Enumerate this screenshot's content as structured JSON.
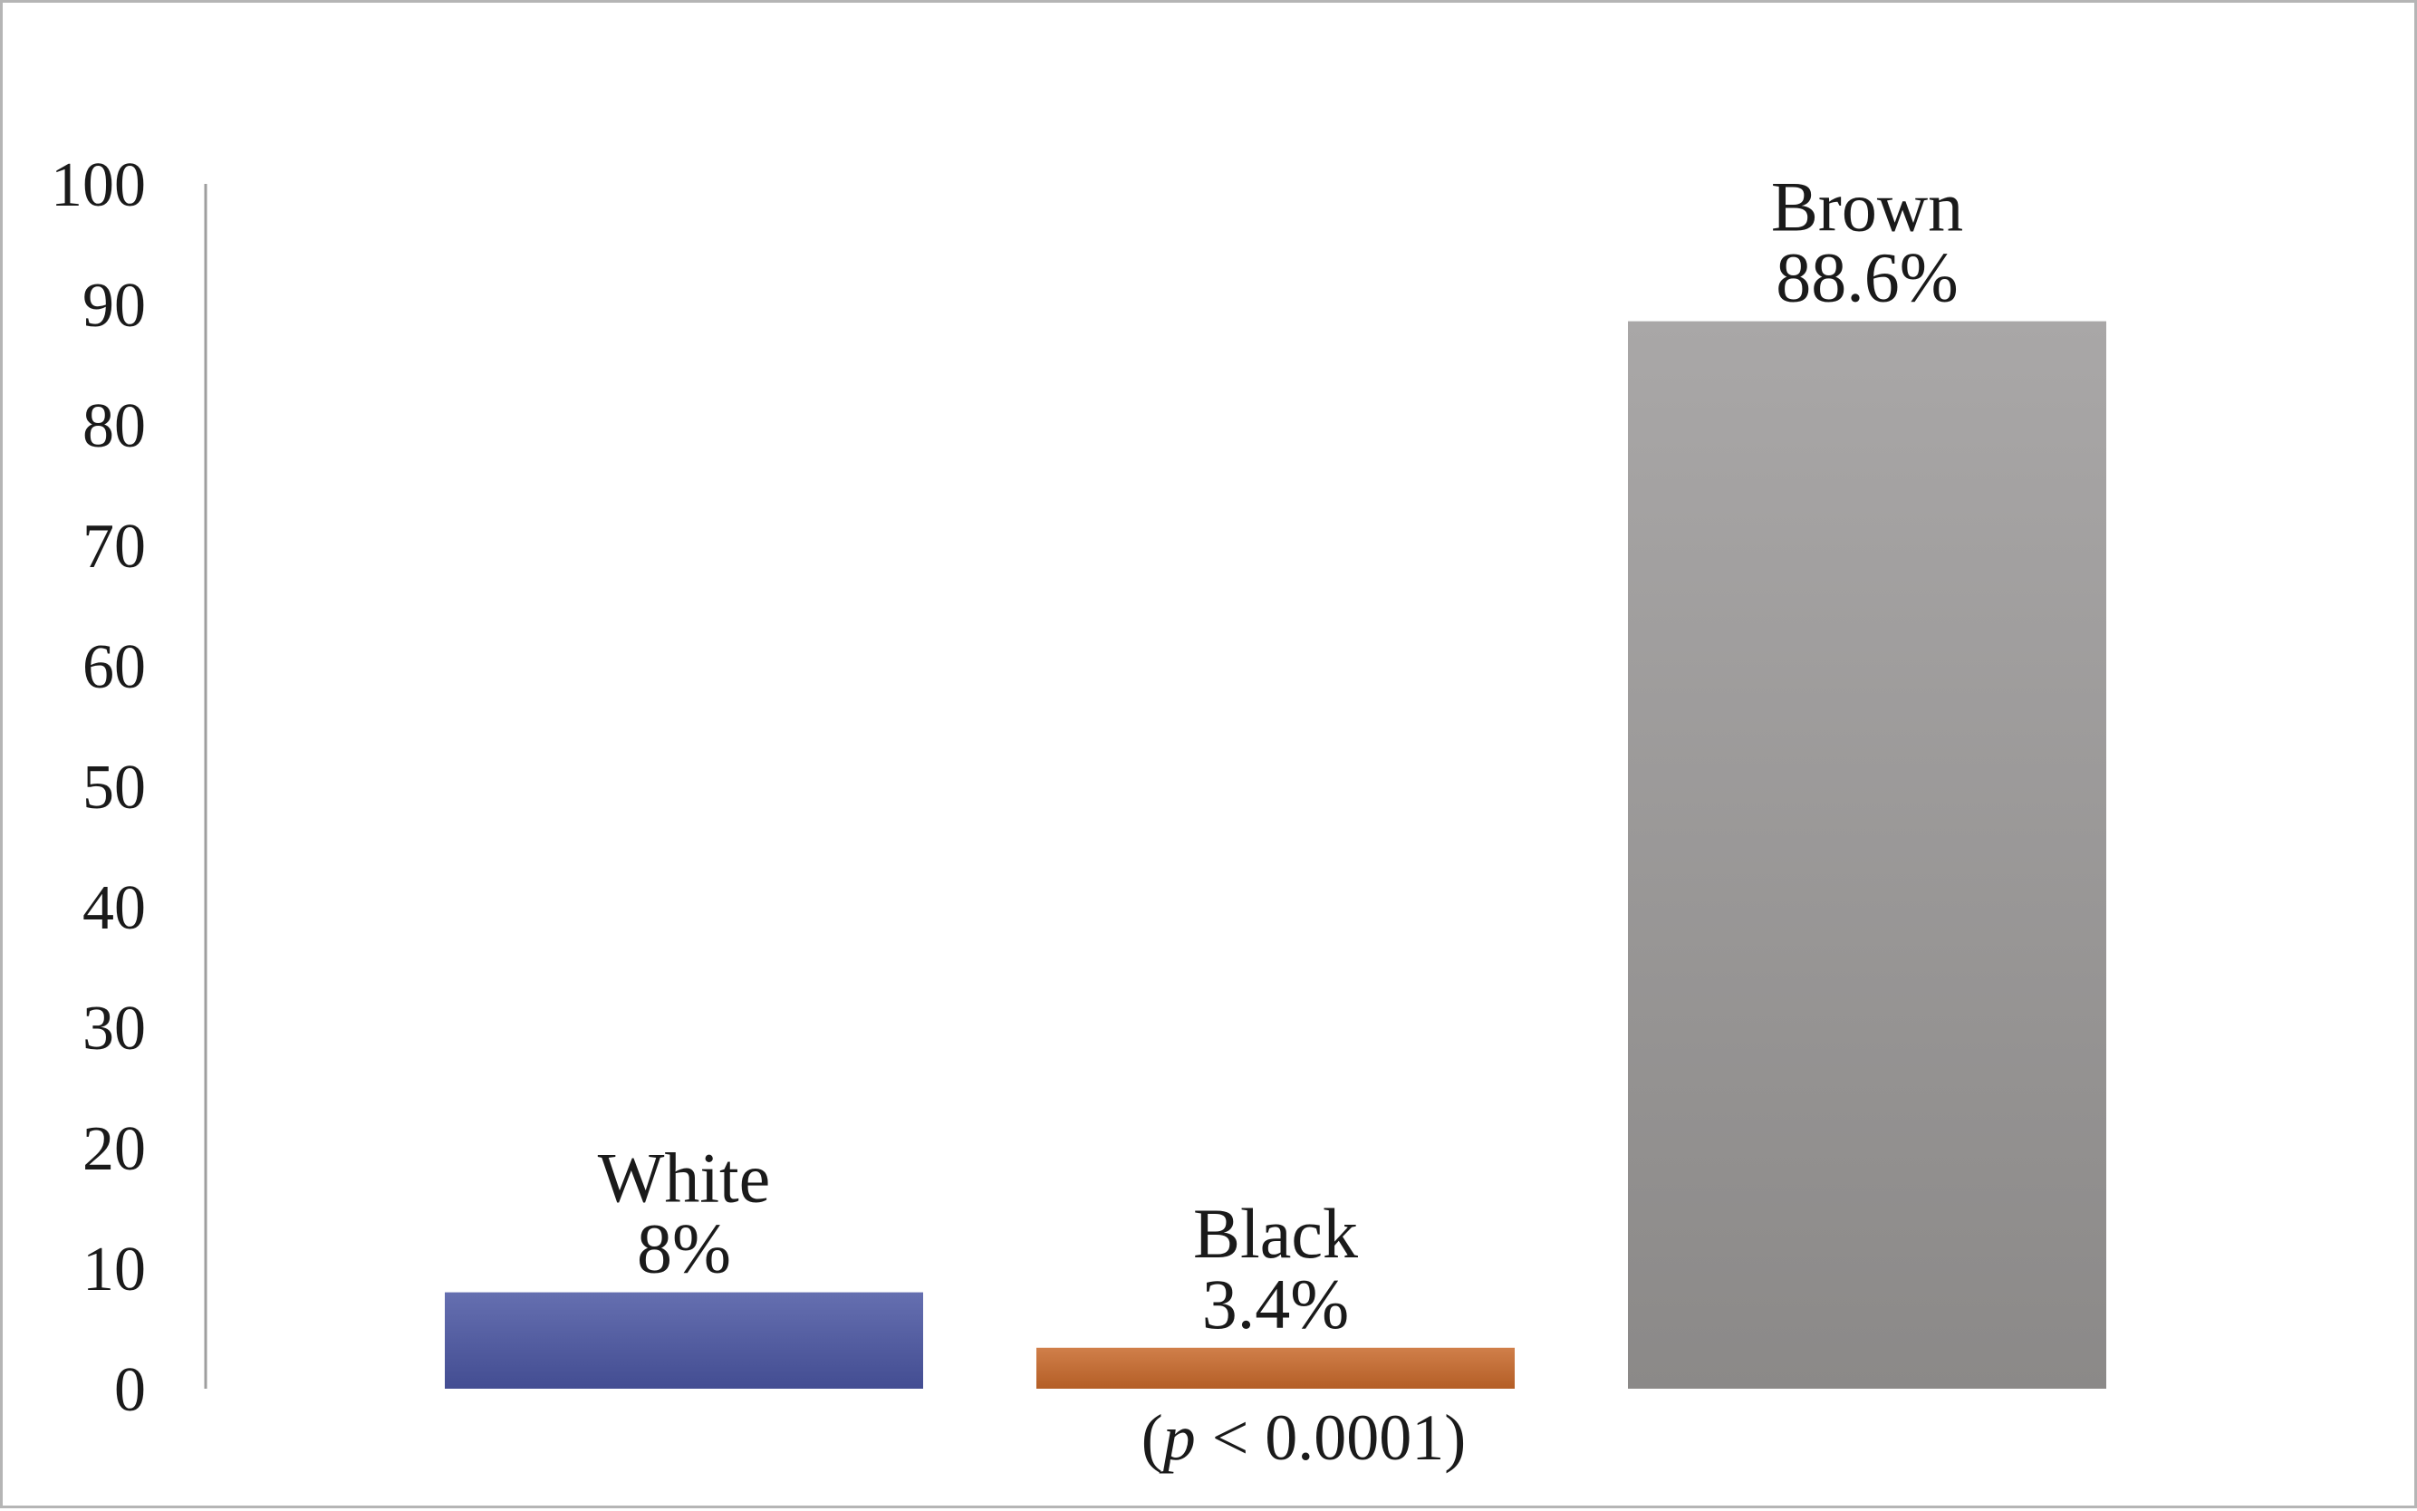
{
  "chart_data": {
    "type": "bar",
    "title": "",
    "xlabel": "",
    "ylabel": "",
    "ylim": [
      0,
      100
    ],
    "yticks": [
      "0",
      "10",
      "20",
      "30",
      "40",
      "50",
      "60",
      "70",
      "80",
      "90",
      "100"
    ],
    "grid": false,
    "legend": "none",
    "categories": [
      "White",
      "Black",
      "Brown"
    ],
    "values": [
      8,
      3.4,
      88.6
    ],
    "value_labels": [
      "8%",
      "3.4%",
      "88.6%"
    ],
    "colors": [
      "#4a55a2",
      "#c8682a",
      "#9a9897"
    ],
    "annotation": {
      "prefix": "(",
      "italic": "p",
      "rest": " < 0.0001)"
    }
  }
}
